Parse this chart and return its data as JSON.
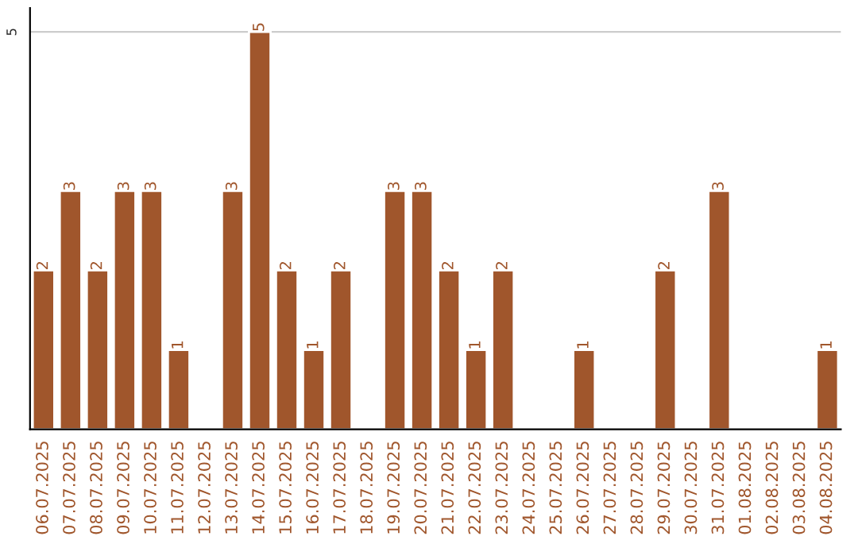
{
  "chart_data": {
    "type": "bar",
    "categories": [
      "06.07.2025",
      "07.07.2025",
      "08.07.2025",
      "09.07.2025",
      "10.07.2025",
      "11.07.2025",
      "12.07.2025",
      "13.07.2025",
      "14.07.2025",
      "15.07.2025",
      "16.07.2025",
      "17.07.2025",
      "18.07.2025",
      "19.07.2025",
      "20.07.2025",
      "21.07.2025",
      "22.07.2025",
      "23.07.2025",
      "24.07.2025",
      "25.07.2025",
      "26.07.2025",
      "27.07.2025",
      "28.07.2025",
      "29.07.2025",
      "30.07.2025",
      "31.07.2025",
      "01.08.2025",
      "02.08.2025",
      "03.08.2025",
      "04.08.2025"
    ],
    "values": [
      2,
      3,
      2,
      3,
      3,
      1,
      0,
      3,
      5,
      2,
      1,
      2,
      0,
      3,
      3,
      2,
      1,
      2,
      0,
      0,
      1,
      0,
      0,
      2,
      0,
      3,
      0,
      0,
      0,
      1
    ],
    "value_labels": [
      "2",
      "3",
      "2",
      "3",
      "3",
      "1",
      null,
      "3",
      "5",
      "2",
      "1",
      "2",
      null,
      "3",
      "3",
      "2",
      "1",
      "2",
      null,
      null,
      "1",
      null,
      null,
      "2",
      null,
      "3",
      null,
      null,
      null,
      "1"
    ],
    "color": "#a0562c",
    "ylim": [
      0,
      5.3
    ],
    "yticks": [
      5
    ],
    "grid": "y",
    "legend": false
  }
}
